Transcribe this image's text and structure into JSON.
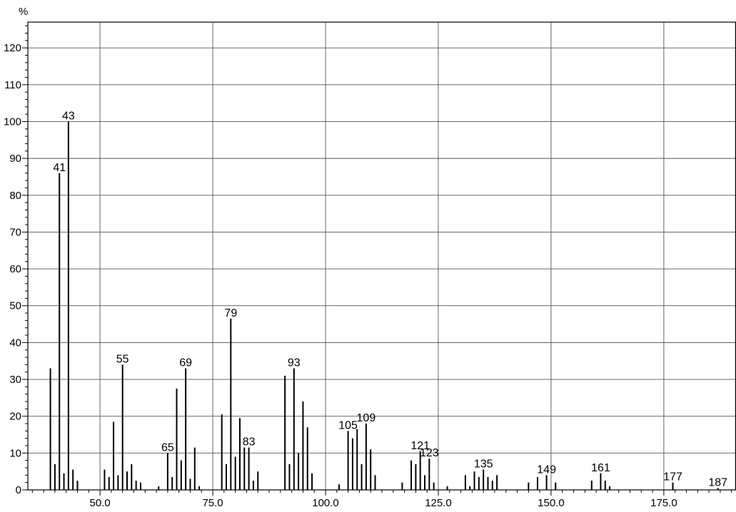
{
  "chart_data": {
    "type": "bar",
    "title": "",
    "xlabel": "",
    "ylabel": "%",
    "xlim": [
      34,
      191
    ],
    "ylim": [
      0,
      127
    ],
    "grid": true,
    "x_ticks": [
      {
        "value": 50,
        "label": "50.0"
      },
      {
        "value": 75,
        "label": "75.0"
      },
      {
        "value": 100,
        "label": "100.0"
      },
      {
        "value": 125,
        "label": "125.0"
      },
      {
        "value": 150,
        "label": "150.0"
      },
      {
        "value": 175,
        "label": "175.0"
      }
    ],
    "y_ticks": [
      {
        "value": 0,
        "label": "0"
      },
      {
        "value": 10,
        "label": "10"
      },
      {
        "value": 20,
        "label": "20"
      },
      {
        "value": 30,
        "label": "30"
      },
      {
        "value": 40,
        "label": "40"
      },
      {
        "value": 50,
        "label": "50"
      },
      {
        "value": 60,
        "label": "60"
      },
      {
        "value": 70,
        "label": "70"
      },
      {
        "value": 80,
        "label": "80"
      },
      {
        "value": 90,
        "label": "90"
      },
      {
        "value": 100,
        "label": "100"
      },
      {
        "value": 110,
        "label": "110"
      },
      {
        "value": 120,
        "label": "120"
      }
    ],
    "peaks": [
      {
        "mz": 39,
        "intensity": 33
      },
      {
        "mz": 40,
        "intensity": 7
      },
      {
        "mz": 41,
        "intensity": 86,
        "label": "41"
      },
      {
        "mz": 42,
        "intensity": 4.5
      },
      {
        "mz": 43,
        "intensity": 100,
        "label": "43"
      },
      {
        "mz": 44,
        "intensity": 5.5
      },
      {
        "mz": 45,
        "intensity": 2.5
      },
      {
        "mz": 51,
        "intensity": 5.5
      },
      {
        "mz": 52,
        "intensity": 3.5
      },
      {
        "mz": 53,
        "intensity": 18.5
      },
      {
        "mz": 54,
        "intensity": 4
      },
      {
        "mz": 55,
        "intensity": 34,
        "label": "55"
      },
      {
        "mz": 56,
        "intensity": 5
      },
      {
        "mz": 57,
        "intensity": 7
      },
      {
        "mz": 58,
        "intensity": 2.5
      },
      {
        "mz": 59,
        "intensity": 2
      },
      {
        "mz": 63,
        "intensity": 1
      },
      {
        "mz": 65,
        "intensity": 10,
        "label": "65"
      },
      {
        "mz": 66,
        "intensity": 3.5
      },
      {
        "mz": 67,
        "intensity": 27.5
      },
      {
        "mz": 68,
        "intensity": 8
      },
      {
        "mz": 69,
        "intensity": 33,
        "label": "69"
      },
      {
        "mz": 70,
        "intensity": 3
      },
      {
        "mz": 71,
        "intensity": 11.5
      },
      {
        "mz": 72,
        "intensity": 1
      },
      {
        "mz": 77,
        "intensity": 20.5
      },
      {
        "mz": 78,
        "intensity": 7
      },
      {
        "mz": 79,
        "intensity": 46.5,
        "label": "79"
      },
      {
        "mz": 80,
        "intensity": 9
      },
      {
        "mz": 81,
        "intensity": 19.5
      },
      {
        "mz": 82,
        "intensity": 11.5
      },
      {
        "mz": 83,
        "intensity": 11.5,
        "label": "83"
      },
      {
        "mz": 84,
        "intensity": 2.5
      },
      {
        "mz": 85,
        "intensity": 5
      },
      {
        "mz": 91,
        "intensity": 31
      },
      {
        "mz": 92,
        "intensity": 7
      },
      {
        "mz": 93,
        "intensity": 33,
        "label": "93"
      },
      {
        "mz": 94,
        "intensity": 10
      },
      {
        "mz": 95,
        "intensity": 24
      },
      {
        "mz": 96,
        "intensity": 17
      },
      {
        "mz": 97,
        "intensity": 4.5
      },
      {
        "mz": 103,
        "intensity": 1.5
      },
      {
        "mz": 105,
        "intensity": 16,
        "label": "105"
      },
      {
        "mz": 106,
        "intensity": 14
      },
      {
        "mz": 107,
        "intensity": 16.5
      },
      {
        "mz": 108,
        "intensity": 7
      },
      {
        "mz": 109,
        "intensity": 18,
        "label": "109"
      },
      {
        "mz": 110,
        "intensity": 11
      },
      {
        "mz": 111,
        "intensity": 4
      },
      {
        "mz": 117,
        "intensity": 2
      },
      {
        "mz": 119,
        "intensity": 8
      },
      {
        "mz": 120,
        "intensity": 7
      },
      {
        "mz": 121,
        "intensity": 10.5,
        "label": "121"
      },
      {
        "mz": 122,
        "intensity": 4
      },
      {
        "mz": 123,
        "intensity": 8.5,
        "label": "123"
      },
      {
        "mz": 124,
        "intensity": 2
      },
      {
        "mz": 127,
        "intensity": 1
      },
      {
        "mz": 131,
        "intensity": 4
      },
      {
        "mz": 132,
        "intensity": 1
      },
      {
        "mz": 133,
        "intensity": 5
      },
      {
        "mz": 134,
        "intensity": 3.5
      },
      {
        "mz": 135,
        "intensity": 5.5,
        "label": "135"
      },
      {
        "mz": 136,
        "intensity": 3.5
      },
      {
        "mz": 137,
        "intensity": 2.5
      },
      {
        "mz": 138,
        "intensity": 4
      },
      {
        "mz": 145,
        "intensity": 2
      },
      {
        "mz": 147,
        "intensity": 3.5
      },
      {
        "mz": 149,
        "intensity": 4,
        "label": "149"
      },
      {
        "mz": 151,
        "intensity": 2
      },
      {
        "mz": 159,
        "intensity": 2.5
      },
      {
        "mz": 161,
        "intensity": 4.5,
        "label": "161"
      },
      {
        "mz": 162,
        "intensity": 2.5
      },
      {
        "mz": 163,
        "intensity": 1
      },
      {
        "mz": 177,
        "intensity": 2,
        "label": "177"
      },
      {
        "mz": 187,
        "intensity": 0.5,
        "label": "187"
      }
    ]
  }
}
